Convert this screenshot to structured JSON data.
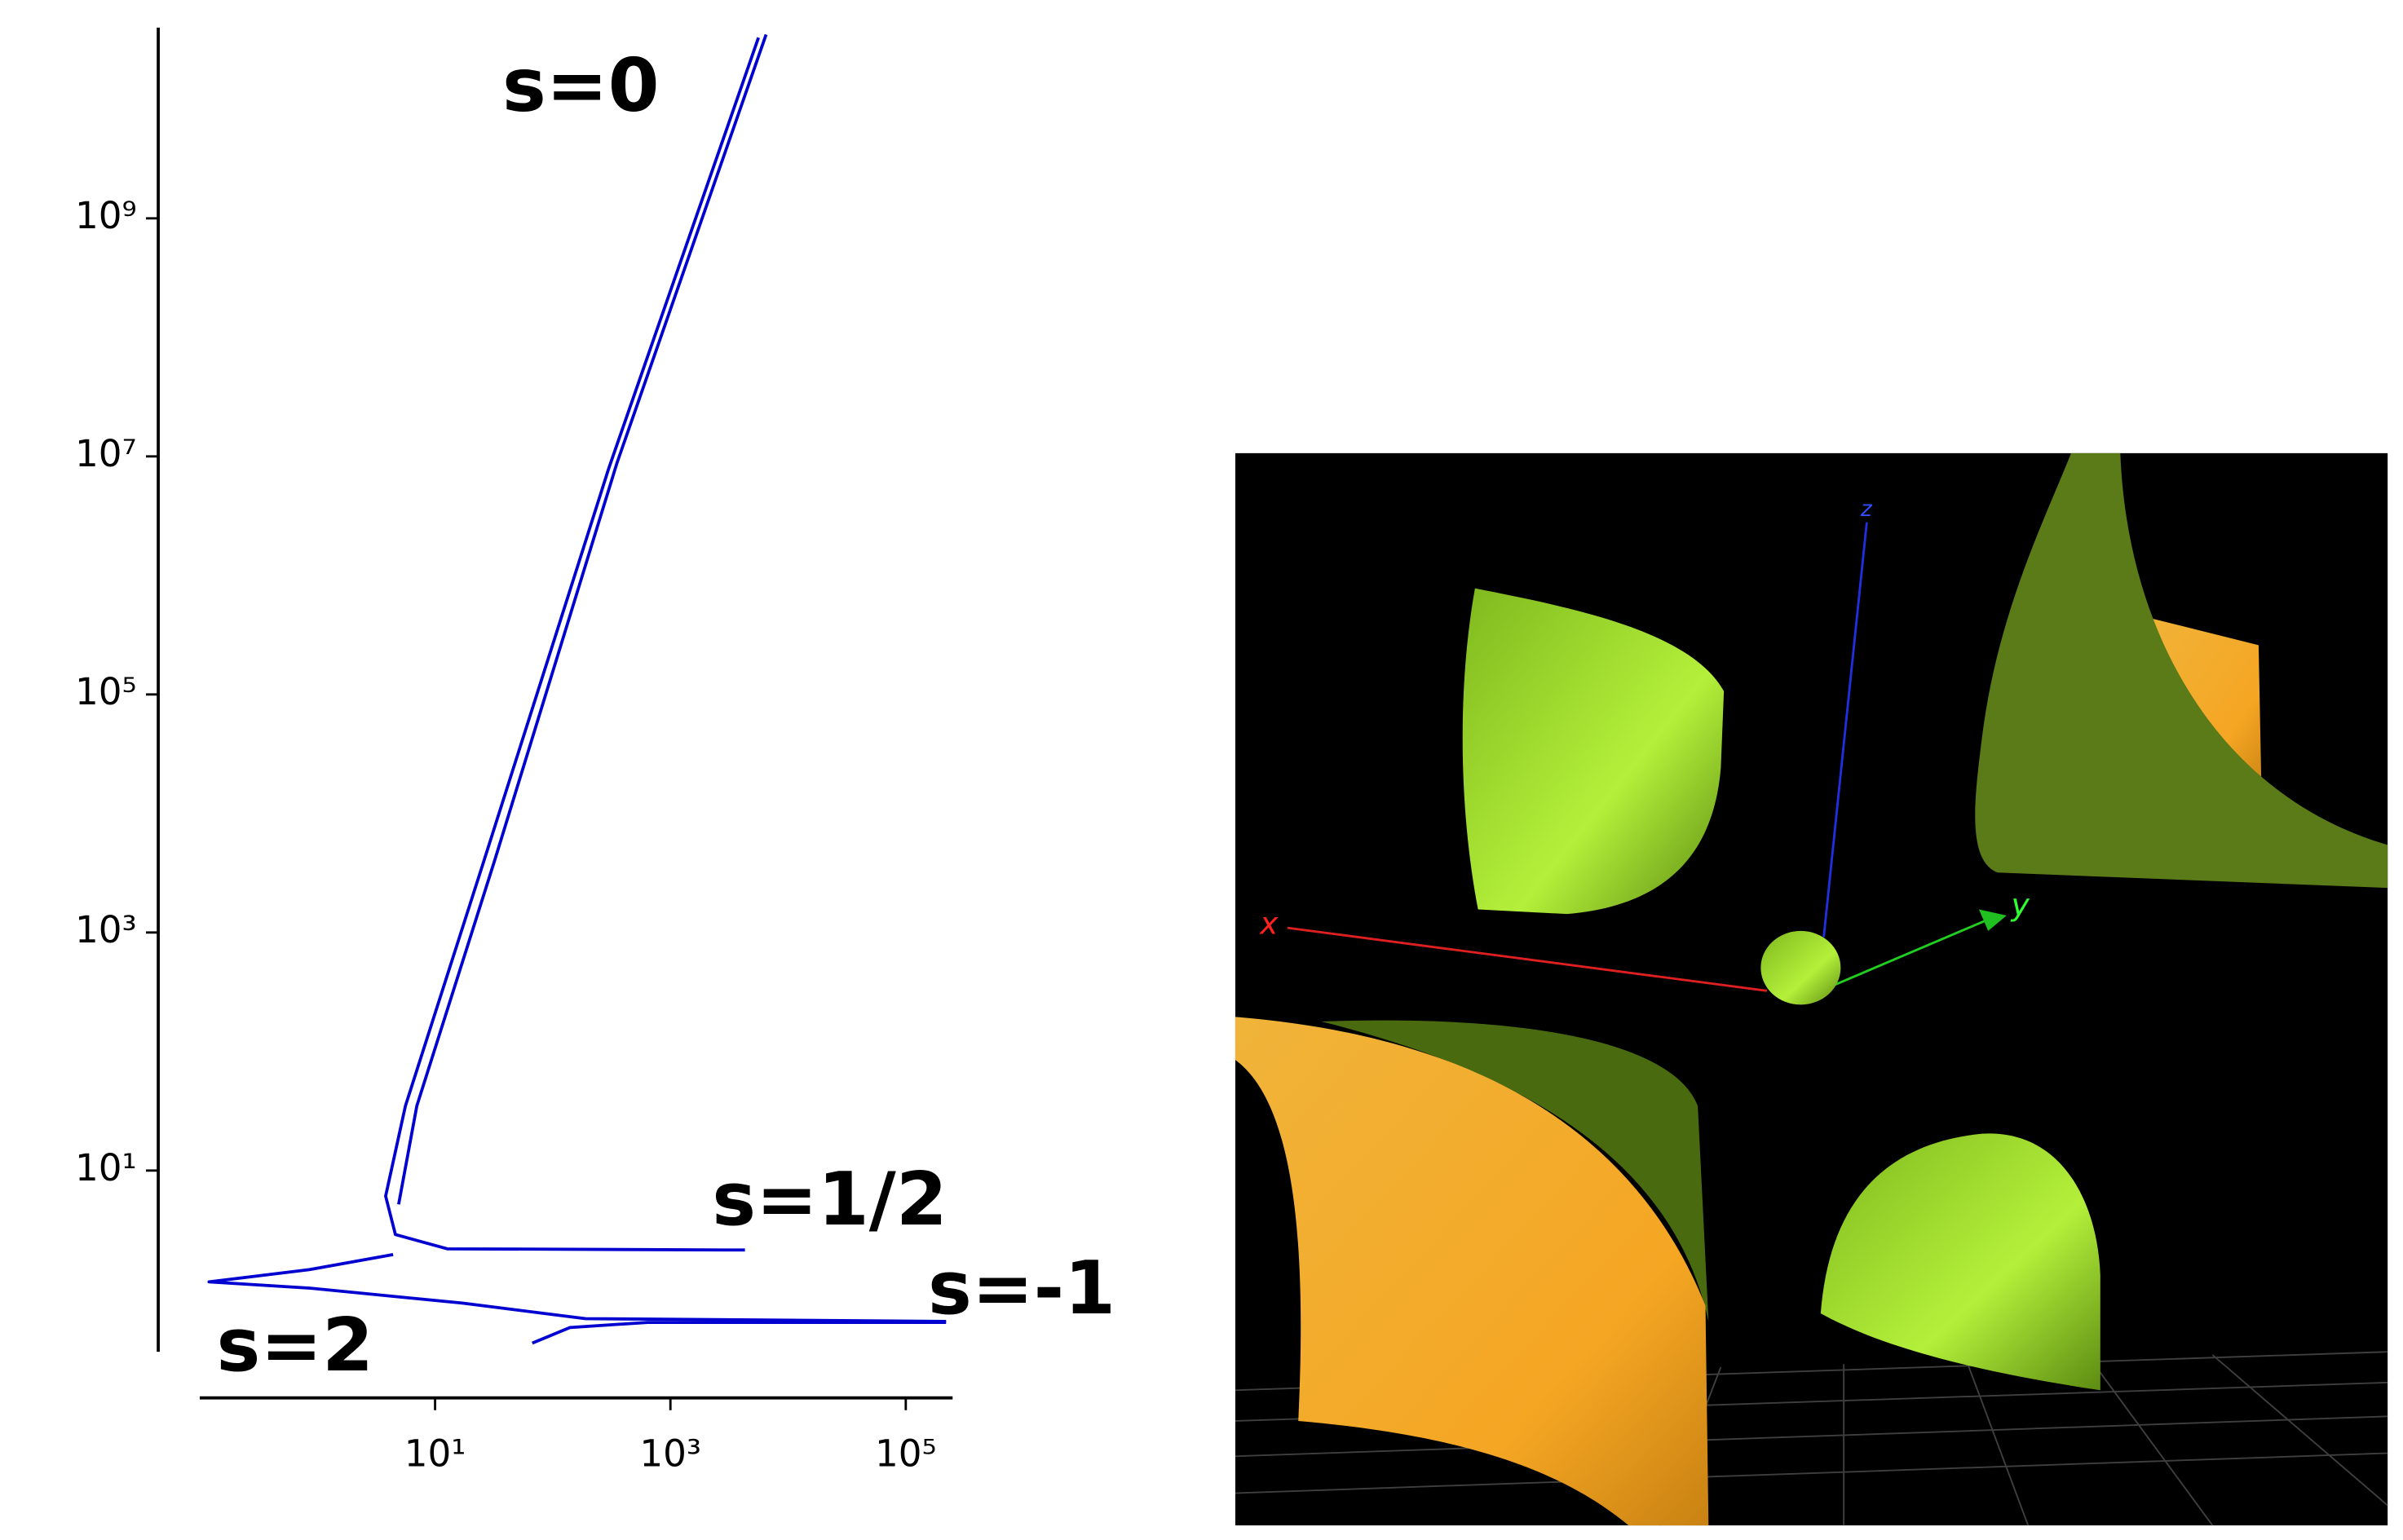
{
  "chart_data": {
    "type": "line",
    "log_x": true,
    "log_y": true,
    "grid": false,
    "xlim": [
      0.1,
      250000
    ],
    "ylim": [
      0.3,
      40000000000
    ],
    "xticks": [
      {
        "value": 10,
        "label": "10¹"
      },
      {
        "value": 1000,
        "label": "10³"
      },
      {
        "value": 100000,
        "label": "10⁵"
      }
    ],
    "yticks": [
      {
        "value": 10,
        "label": "10¹"
      },
      {
        "value": 1000,
        "label": "10³"
      },
      {
        "value": 100000,
        "label": "10⁵"
      },
      {
        "value": 10000000,
        "label": "10⁷"
      },
      {
        "value": 1000000000,
        "label": "10⁹"
      }
    ],
    "series": [
      {
        "name": "s=0",
        "color": "#0000d0",
        "x": [
          6500,
          350,
          32,
          7.0,
          4.9
        ],
        "values": [
          35000000000,
          8700000,
          4000,
          35,
          5.2
        ]
      },
      {
        "name": "s=1/2",
        "color": "#0000d0",
        "x": [
          5600,
          300,
          26,
          5.6,
          3.8,
          4.6,
          12.7,
          4300
        ],
        "values": [
          33000000000,
          8000000,
          4000,
          35,
          6.1,
          2.9,
          2.2,
          2.15
        ]
      },
      {
        "name": "s=-1",
        "color": "#0000d0",
        "x": [
          67,
          140,
          640,
          220000
        ],
        "values": [
          0.355,
          0.48,
          0.53,
          0.53
        ]
      },
      {
        "name": "s=2",
        "color": "#0000d0",
        "x": [
          4.4,
          0.85,
          0.12,
          0.85,
          17,
          190,
          220000
        ],
        "values": [
          1.97,
          1.47,
          1.16,
          1.03,
          0.77,
          0.57,
          0.54
        ]
      }
    ]
  },
  "scene": {
    "axis_labels": [
      "x",
      "y",
      "z"
    ]
  }
}
